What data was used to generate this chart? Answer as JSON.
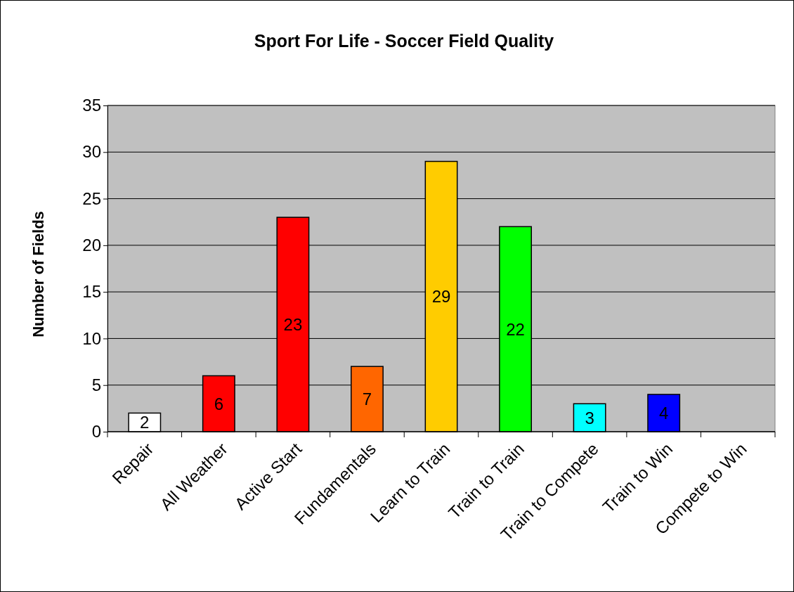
{
  "chart_data": {
    "type": "bar",
    "title": "Sport For Life - Soccer Field Quality",
    "ylabel": "Number of Fields",
    "categories": [
      "Repair",
      "All Weather",
      "Active Start",
      "Fundamentals",
      "Learn to Train",
      "Train to Train",
      "Train to Compete",
      "Train to Win",
      "Compete to Win"
    ],
    "values": [
      2,
      6,
      23,
      7,
      29,
      22,
      3,
      4,
      null
    ],
    "colors": [
      "#ffffff",
      "#ff0000",
      "#ff0000",
      "#ff6600",
      "#ffcc00",
      "#00ff00",
      "#00ffff",
      "#0000ff",
      null
    ],
    "value_labels": [
      "2",
      "6",
      "23",
      "7",
      "29",
      "22",
      "3",
      "4",
      null
    ],
    "ylim": [
      0,
      35
    ],
    "yticks": [
      0,
      5,
      10,
      15,
      20,
      25,
      30,
      35
    ],
    "grid": "y"
  }
}
